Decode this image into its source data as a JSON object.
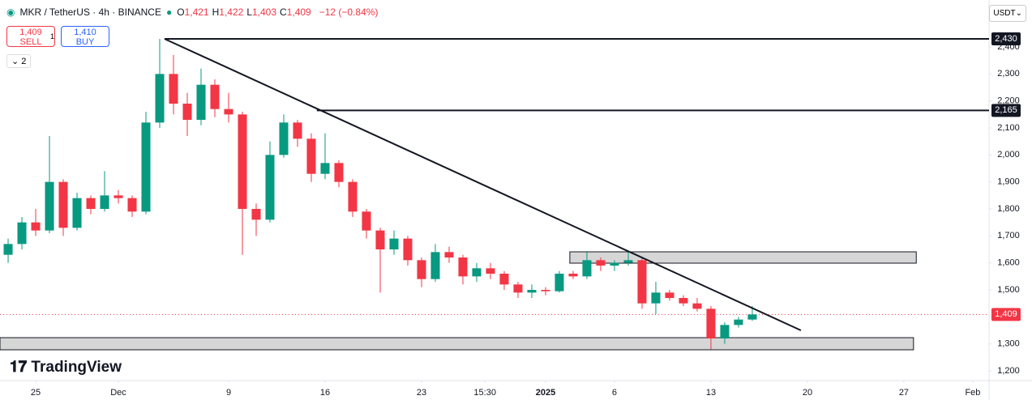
{
  "header": {
    "symbol": "MKR / TetherUS · 4h · BINANCE",
    "ohlc": [
      {
        "label": "O",
        "value": "1,421"
      },
      {
        "label": "H",
        "value": "1,422"
      },
      {
        "label": "L",
        "value": "1,403"
      },
      {
        "label": "C",
        "value": "1,409"
      }
    ],
    "change": "−12 (−0.84%)",
    "sell": {
      "price": "1,409",
      "label": "SELL"
    },
    "spread": "1",
    "buy": {
      "price": "1,410",
      "label": "BUY"
    },
    "indicators": "2",
    "currency": "USDT",
    "logo": "TradingView"
  },
  "chart_data": {
    "type": "candlestick",
    "up_color": "#089981",
    "down_color": "#f23645",
    "grid": false,
    "xlim": [
      22.41,
      94.18
    ],
    "ylim": [
      1164,
      2574
    ],
    "xticks": [
      {
        "value": 25,
        "label": "25"
      },
      {
        "value": 31,
        "label": "Dec"
      },
      {
        "value": 39,
        "label": "9"
      },
      {
        "value": 46,
        "label": "16"
      },
      {
        "value": 53,
        "label": "23"
      },
      {
        "value": 57.6,
        "label": "15:30"
      },
      {
        "value": 62,
        "label": "2025"
      },
      {
        "value": 67,
        "label": "6"
      },
      {
        "value": 74,
        "label": "13"
      },
      {
        "value": 81,
        "label": "20"
      },
      {
        "value": 88,
        "label": "27"
      },
      {
        "value": 93,
        "label": "Feb"
      }
    ],
    "yticks": [
      {
        "value": 2400,
        "label": "2,400"
      },
      {
        "value": 2300,
        "label": "2,300"
      },
      {
        "value": 2200,
        "label": "2,200"
      },
      {
        "value": 2100,
        "label": "2,100"
      },
      {
        "value": 2000,
        "label": "2,000"
      },
      {
        "value": 1900,
        "label": "1,900"
      },
      {
        "value": 1800,
        "label": "1,800"
      },
      {
        "value": 1700,
        "label": "1,700"
      },
      {
        "value": 1600,
        "label": "1,600"
      },
      {
        "value": 1500,
        "label": "1,500"
      },
      {
        "value": 1400,
        "label": "1,400"
      },
      {
        "value": 1300,
        "label": "1,300"
      },
      {
        "value": 1200,
        "label": "1,200"
      }
    ],
    "x": [
      23,
      24,
      25,
      26,
      27,
      28,
      29,
      30,
      31,
      32,
      33,
      34,
      35,
      36,
      37,
      38,
      39,
      40,
      41,
      42,
      43,
      44,
      45,
      46,
      47,
      48,
      49,
      50,
      51,
      52,
      53,
      54,
      55,
      56,
      57,
      58,
      59,
      60,
      61,
      62,
      63,
      64,
      65,
      66,
      67,
      68,
      69,
      70,
      71,
      72,
      73,
      74,
      75,
      76,
      77
    ],
    "candles": [
      [
        1630,
        1690,
        1600,
        1670
      ],
      [
        1670,
        1770,
        1650,
        1750
      ],
      [
        1750,
        1800,
        1700,
        1720
      ],
      [
        1720,
        2070,
        1710,
        1900
      ],
      [
        1900,
        1910,
        1700,
        1730
      ],
      [
        1730,
        1860,
        1720,
        1840
      ],
      [
        1840,
        1850,
        1780,
        1800
      ],
      [
        1800,
        1940,
        1790,
        1850
      ],
      [
        1850,
        1870,
        1820,
        1840
      ],
      [
        1840,
        1850,
        1770,
        1790
      ],
      [
        1790,
        2160,
        1780,
        2120
      ],
      [
        2120,
        2430,
        2100,
        2300
      ],
      [
        2300,
        2370,
        2150,
        2190
      ],
      [
        2190,
        2230,
        2070,
        2130
      ],
      [
        2130,
        2320,
        2110,
        2260
      ],
      [
        2260,
        2280,
        2140,
        2170
      ],
      [
        2170,
        2230,
        2120,
        2150
      ],
      [
        2150,
        2160,
        1630,
        1800
      ],
      [
        1800,
        1820,
        1700,
        1760
      ],
      [
        1760,
        2050,
        1750,
        2000
      ],
      [
        2000,
        2150,
        1990,
        2120
      ],
      [
        2120,
        2130,
        2030,
        2060
      ],
      [
        2060,
        2080,
        1900,
        1930
      ],
      [
        1930,
        2080,
        1910,
        1970
      ],
      [
        1970,
        1980,
        1880,
        1900
      ],
      [
        1900,
        1910,
        1770,
        1790
      ],
      [
        1790,
        1800,
        1690,
        1720
      ],
      [
        1720,
        1730,
        1490,
        1650
      ],
      [
        1650,
        1720,
        1630,
        1690
      ],
      [
        1690,
        1700,
        1590,
        1610
      ],
      [
        1610,
        1620,
        1510,
        1540
      ],
      [
        1540,
        1670,
        1530,
        1640
      ],
      [
        1640,
        1660,
        1600,
        1620
      ],
      [
        1620,
        1630,
        1520,
        1550
      ],
      [
        1550,
        1600,
        1530,
        1580
      ],
      [
        1580,
        1600,
        1540,
        1560
      ],
      [
        1560,
        1570,
        1500,
        1520
      ],
      [
        1520,
        1530,
        1470,
        1490
      ],
      [
        1490,
        1520,
        1470,
        1500
      ],
      [
        1500,
        1510,
        1480,
        1495
      ],
      [
        1495,
        1570,
        1490,
        1560
      ],
      [
        1560,
        1570,
        1540,
        1550
      ],
      [
        1550,
        1640,
        1540,
        1610
      ],
      [
        1610,
        1620,
        1570,
        1590
      ],
      [
        1590,
        1610,
        1570,
        1600
      ],
      [
        1600,
        1640,
        1590,
        1610
      ],
      [
        1610,
        1620,
        1430,
        1450
      ],
      [
        1450,
        1530,
        1410,
        1490
      ],
      [
        1490,
        1500,
        1460,
        1470
      ],
      [
        1470,
        1480,
        1440,
        1450
      ],
      [
        1450,
        1470,
        1420,
        1430
      ],
      [
        1430,
        1440,
        1280,
        1320
      ],
      [
        1320,
        1380,
        1300,
        1370
      ],
      [
        1370,
        1400,
        1360,
        1390
      ],
      [
        1390,
        1440,
        1385,
        1409
      ]
    ],
    "hlines": [
      {
        "value": 2430,
        "label": "2,430",
        "x0": 34.35
      },
      {
        "value": 2165,
        "label": "2,165",
        "x0": 45.4
      }
    ],
    "trendline": [
      [
        34.35,
        2430
      ],
      [
        80.53,
        1350
      ]
    ],
    "zones": [
      {
        "x": [
          63.76,
          88.9
        ],
        "y": [
          1599,
          1641
        ]
      },
      {
        "x": [
          22.41,
          88.7
        ],
        "y": [
          1278,
          1323
        ]
      }
    ],
    "last_price": {
      "value": 1409,
      "label": "1,409"
    }
  }
}
